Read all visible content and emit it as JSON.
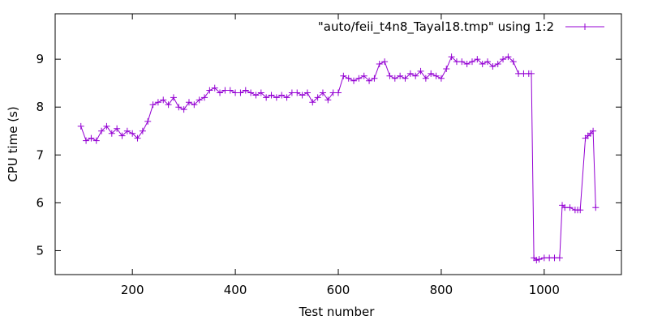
{
  "chart_data": {
    "type": "line",
    "title": "",
    "xlabel": "Test number",
    "ylabel": "CPU time (s)",
    "xlim": [
      50,
      1150
    ],
    "ylim": [
      4.5,
      9.95
    ],
    "xticks": [
      200,
      400,
      600,
      800,
      1000
    ],
    "yticks": [
      5,
      6,
      7,
      8,
      9
    ],
    "grid": false,
    "legend_position": "top-right",
    "series": [
      {
        "name": "\"auto/feii_t4n8_Tayal18.tmp\" using 1:2",
        "color": "#9400d3",
        "marker": "plus",
        "x": [
          100,
          110,
          120,
          130,
          140,
          150,
          160,
          170,
          180,
          190,
          200,
          210,
          220,
          230,
          240,
          250,
          260,
          270,
          280,
          290,
          300,
          310,
          320,
          330,
          340,
          350,
          360,
          370,
          380,
          390,
          400,
          410,
          420,
          430,
          440,
          450,
          460,
          470,
          480,
          490,
          500,
          510,
          520,
          530,
          540,
          550,
          560,
          570,
          580,
          590,
          600,
          610,
          620,
          630,
          640,
          650,
          660,
          670,
          680,
          690,
          700,
          710,
          720,
          730,
          740,
          750,
          760,
          770,
          780,
          790,
          800,
          810,
          820,
          830,
          840,
          850,
          860,
          870,
          880,
          890,
          900,
          910,
          920,
          930,
          940,
          950,
          960,
          970,
          975,
          980,
          985,
          990,
          1000,
          1010,
          1020,
          1030,
          1035,
          1040,
          1050,
          1060,
          1065,
          1070,
          1080,
          1085,
          1090,
          1095,
          1100
        ],
        "y": [
          7.6,
          7.3,
          7.35,
          7.3,
          7.5,
          7.6,
          7.45,
          7.55,
          7.4,
          7.5,
          7.45,
          7.35,
          7.5,
          7.7,
          8.05,
          8.1,
          8.15,
          8.05,
          8.2,
          8.0,
          7.95,
          8.1,
          8.05,
          8.15,
          8.2,
          8.35,
          8.4,
          8.3,
          8.35,
          8.35,
          8.3,
          8.3,
          8.35,
          8.3,
          8.25,
          8.3,
          8.2,
          8.25,
          8.2,
          8.25,
          8.2,
          8.3,
          8.3,
          8.25,
          8.3,
          8.1,
          8.2,
          8.3,
          8.15,
          8.3,
          8.3,
          8.65,
          8.6,
          8.55,
          8.6,
          8.65,
          8.55,
          8.6,
          8.9,
          8.95,
          8.65,
          8.6,
          8.65,
          8.6,
          8.7,
          8.65,
          8.75,
          8.6,
          8.7,
          8.65,
          8.6,
          8.8,
          9.05,
          8.95,
          8.95,
          8.9,
          8.95,
          9.0,
          8.9,
          8.95,
          8.85,
          8.9,
          9.0,
          9.05,
          8.95,
          8.7,
          8.7,
          8.7,
          8.7,
          4.85,
          4.8,
          4.82,
          4.85,
          4.85,
          4.85,
          4.85,
          5.95,
          5.9,
          5.9,
          5.85,
          5.85,
          5.85,
          7.35,
          7.4,
          7.45,
          7.5,
          5.9
        ]
      }
    ]
  }
}
